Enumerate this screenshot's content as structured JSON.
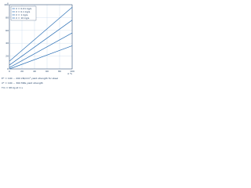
{
  "chart_data": {
    "type": "line",
    "x_label": "A %",
    "y_label": "ε",
    "x": [
      0,
      100
    ],
    "series": [
      {
        "name": "σ = 0.01 kg/s",
        "color": "#2a6fb5",
        "values": [
          12,
          96
        ]
      },
      {
        "name": "σ = 0.1 kg/s",
        "color": "#2a6fb5",
        "values": [
          6,
          76
        ]
      },
      {
        "name": "σ = 1 kg/s",
        "color": "#2a6fb5",
        "values": [
          2,
          56
        ]
      },
      {
        "name": "σ = 10 kg/s",
        "color": "#2a6fb5",
        "values": [
          0,
          36
        ]
      }
    ],
    "xlim": [
      0,
      100
    ],
    "ylim": [
      0,
      100
    ],
    "xticks": [
      0,
      20,
      40,
      60,
      80,
      100
    ],
    "yticks": [
      0,
      20,
      40,
      60,
      80,
      100
    ],
    "grid": true,
    "legend": "top-left",
    "notes": [
      "E* = 100 ... 200 kN/mm² yield strength for steel",
      "σ* = 100 ... 300 MPa yield strength",
      "Tm = 98 kg at 1 s"
    ]
  }
}
